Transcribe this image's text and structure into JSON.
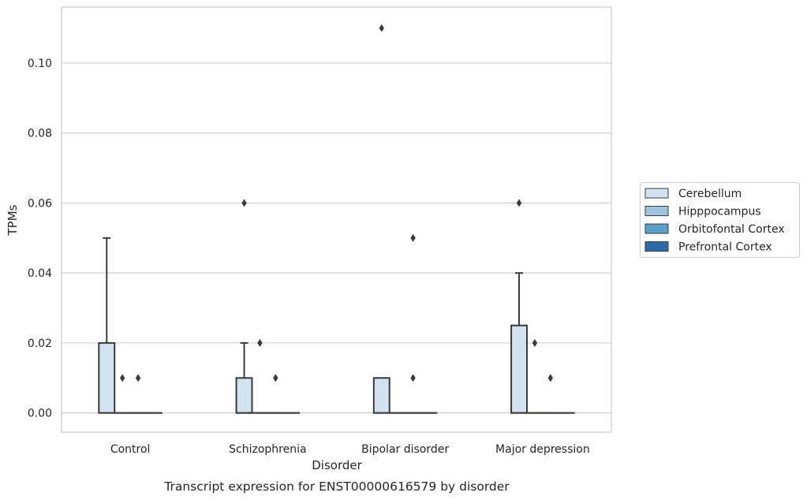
{
  "chart_data": {
    "type": "box",
    "xlabel": "Disorder",
    "ylabel": "TPMs",
    "caption": "Transcript expression for ENST00000616579 by disorder",
    "ylim": [
      -0.0055,
      0.116
    ],
    "yticks": [
      "0.00",
      "0.02",
      "0.04",
      "0.06",
      "0.08",
      "0.10"
    ],
    "grid": "horizontal",
    "legend_position": "right",
    "categories": [
      "Control",
      "Schizophrenia",
      "Bipolar disorder",
      "Major depression"
    ],
    "series": [
      {
        "name": "Cerebellum",
        "color": "#d3e2f0",
        "boxes": [
          {
            "q1": 0,
            "median": 0,
            "q3": 0.02,
            "whisker_low": 0,
            "whisker_high": 0.05,
            "outliers": []
          },
          {
            "q1": 0,
            "median": 0,
            "q3": 0.01,
            "whisker_low": 0,
            "whisker_high": 0.02,
            "outliers": [
              0.06
            ]
          },
          {
            "q1": 0,
            "median": 0,
            "q3": 0.01,
            "whisker_low": 0,
            "whisker_high": 0.01,
            "outliers": [
              0.11
            ]
          },
          {
            "q1": 0,
            "median": 0,
            "q3": 0.025,
            "whisker_low": 0,
            "whisker_high": 0.04,
            "outliers": [
              0.06
            ]
          }
        ]
      },
      {
        "name": "Hipppocampus",
        "color": "#9ec4db",
        "boxes": [
          {
            "q1": 0,
            "median": 0,
            "q3": 0,
            "whisker_low": 0,
            "whisker_high": 0,
            "outliers": [
              0.01
            ]
          },
          {
            "q1": 0,
            "median": 0,
            "q3": 0,
            "whisker_low": 0,
            "whisker_high": 0,
            "outliers": [
              0.02
            ]
          },
          {
            "q1": 0,
            "median": 0,
            "q3": 0,
            "whisker_low": 0,
            "whisker_high": 0,
            "outliers": []
          },
          {
            "q1": 0,
            "median": 0,
            "q3": 0,
            "whisker_low": 0,
            "whisker_high": 0,
            "outliers": [
              0.02
            ]
          }
        ]
      },
      {
        "name": "Orbitofontal Cortex",
        "color": "#5a9dc8",
        "boxes": [
          {
            "q1": 0,
            "median": 0,
            "q3": 0,
            "whisker_low": 0,
            "whisker_high": 0,
            "outliers": [
              0.01
            ]
          },
          {
            "q1": 0,
            "median": 0,
            "q3": 0,
            "whisker_low": 0,
            "whisker_high": 0,
            "outliers": [
              0.01
            ]
          },
          {
            "q1": 0,
            "median": 0,
            "q3": 0,
            "whisker_low": 0,
            "whisker_high": 0,
            "outliers": [
              0.05,
              0.01
            ]
          },
          {
            "q1": 0,
            "median": 0,
            "q3": 0,
            "whisker_low": 0,
            "whisker_high": 0,
            "outliers": [
              0.01
            ]
          }
        ]
      },
      {
        "name": "Prefrontal Cortex",
        "color": "#2d6ba8",
        "boxes": [
          {
            "q1": 0,
            "median": 0,
            "q3": 0,
            "whisker_low": 0,
            "whisker_high": 0,
            "outliers": []
          },
          {
            "q1": 0,
            "median": 0,
            "q3": 0,
            "whisker_low": 0,
            "whisker_high": 0,
            "outliers": []
          },
          {
            "q1": 0,
            "median": 0,
            "q3": 0,
            "whisker_low": 0,
            "whisker_high": 0,
            "outliers": []
          },
          {
            "q1": 0,
            "median": 0,
            "q3": 0,
            "whisker_low": 0,
            "whisker_high": 0,
            "outliers": []
          }
        ]
      }
    ]
  }
}
